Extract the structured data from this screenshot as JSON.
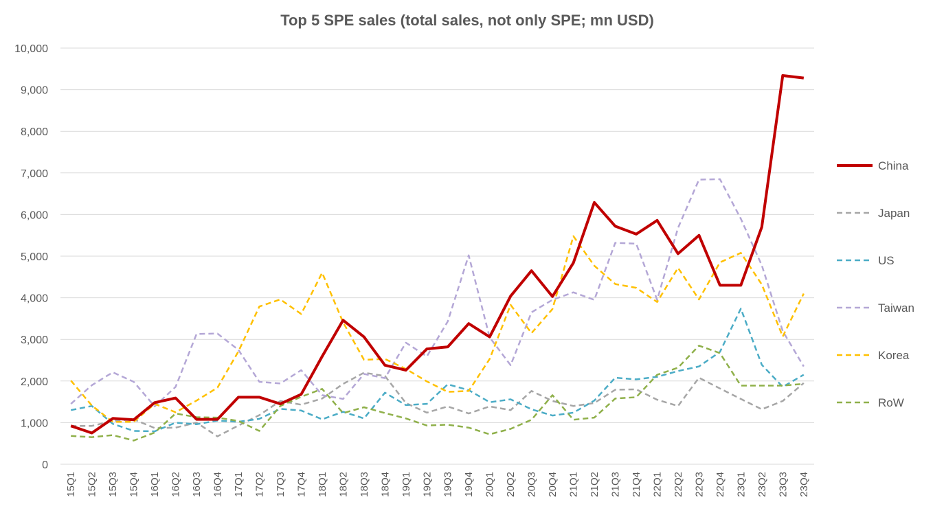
{
  "chart_data": {
    "type": "line",
    "title": "Top 5 SPE sales (total sales, not only SPE; mn USD)",
    "xlabel": "",
    "ylabel": "",
    "ylim": [
      0,
      10000
    ],
    "yticks": [
      0,
      1000,
      2000,
      3000,
      4000,
      5000,
      6000,
      7000,
      8000,
      9000,
      10000
    ],
    "ytick_labels": [
      "0",
      "1,000",
      "2,000",
      "3,000",
      "4,000",
      "5,000",
      "6,000",
      "7,000",
      "8,000",
      "9,000",
      "10,000"
    ],
    "grid": true,
    "legend_position": "right",
    "categories": [
      "15Q1",
      "15Q2",
      "15Q3",
      "15Q4",
      "16Q1",
      "16Q2",
      "16Q3",
      "16Q4",
      "17Q1",
      "17Q2",
      "17Q3",
      "17Q4",
      "18Q1",
      "18Q2",
      "18Q3",
      "18Q4",
      "19Q1",
      "19Q2",
      "19Q3",
      "19Q4",
      "20Q1",
      "20Q2",
      "20Q3",
      "20Q4",
      "21Q1",
      "21Q2",
      "21Q3",
      "21Q4",
      "22Q1",
      "22Q2",
      "22Q3",
      "22Q4",
      "23Q1",
      "23Q2",
      "23Q3",
      "23Q4"
    ],
    "series": [
      {
        "name": "China",
        "color": "#c00000",
        "style": "solid",
        "values": [
          920,
          750,
          1100,
          1070,
          1480,
          1590,
          1080,
          1080,
          1610,
          1610,
          1450,
          1680,
          2590,
          3460,
          3060,
          2380,
          2260,
          2770,
          2820,
          3380,
          3060,
          4040,
          4650,
          4030,
          4840,
          6290,
          5720,
          5530,
          5860,
          5060,
          5500,
          4300,
          4300,
          5700,
          9340,
          9280
        ]
      },
      {
        "name": "Japan",
        "color": "#a6a6a6",
        "style": "dashed",
        "values": [
          920,
          920,
          1040,
          1080,
          870,
          880,
          1000,
          670,
          930,
          1180,
          1520,
          1430,
          1580,
          1930,
          2200,
          2120,
          1470,
          1240,
          1390,
          1220,
          1390,
          1300,
          1760,
          1520,
          1400,
          1470,
          1790,
          1800,
          1550,
          1400,
          2080,
          1820,
          1570,
          1320,
          1520,
          1950
        ]
      },
      {
        "name": "US",
        "color": "#4bacc6",
        "style": "dashed",
        "values": [
          1300,
          1400,
          970,
          800,
          790,
          1000,
          960,
          1050,
          1020,
          1090,
          1330,
          1290,
          1080,
          1260,
          1100,
          1720,
          1420,
          1450,
          1920,
          1780,
          1490,
          1560,
          1320,
          1170,
          1240,
          1530,
          2080,
          2040,
          2100,
          2240,
          2350,
          2700,
          3740,
          2390,
          1860,
          2150
        ]
      },
      {
        "name": "Taiwan",
        "color": "#b4a7d6",
        "style": "dashed",
        "values": [
          1450,
          1900,
          2210,
          1980,
          1390,
          1860,
          3130,
          3140,
          2750,
          1980,
          1940,
          2260,
          1660,
          1570,
          2170,
          2070,
          2920,
          2590,
          3430,
          5020,
          3050,
          2380,
          3650,
          3950,
          4130,
          3950,
          5320,
          5300,
          3950,
          5680,
          6840,
          6850,
          5900,
          4780,
          3200,
          2350
        ]
      },
      {
        "name": "Korea",
        "color": "#ffc000",
        "style": "dashed",
        "values": [
          2010,
          1410,
          1020,
          1020,
          1450,
          1250,
          1530,
          1840,
          2710,
          3790,
          3960,
          3610,
          4600,
          3410,
          2510,
          2530,
          2290,
          1990,
          1740,
          1760,
          2530,
          3830,
          3150,
          3730,
          5480,
          4770,
          4330,
          4240,
          3900,
          4720,
          3960,
          4850,
          5080,
          4320,
          3070,
          4100
        ]
      },
      {
        "name": "RoW",
        "color": "#8fb04a",
        "style": "dashed",
        "values": [
          680,
          650,
          700,
          570,
          760,
          1220,
          1130,
          1120,
          1040,
          800,
          1400,
          1620,
          1810,
          1230,
          1370,
          1230,
          1100,
          930,
          950,
          880,
          720,
          850,
          1070,
          1660,
          1070,
          1120,
          1580,
          1610,
          2150,
          2320,
          2850,
          2670,
          1890,
          1890,
          1890,
          1930
        ]
      }
    ]
  }
}
